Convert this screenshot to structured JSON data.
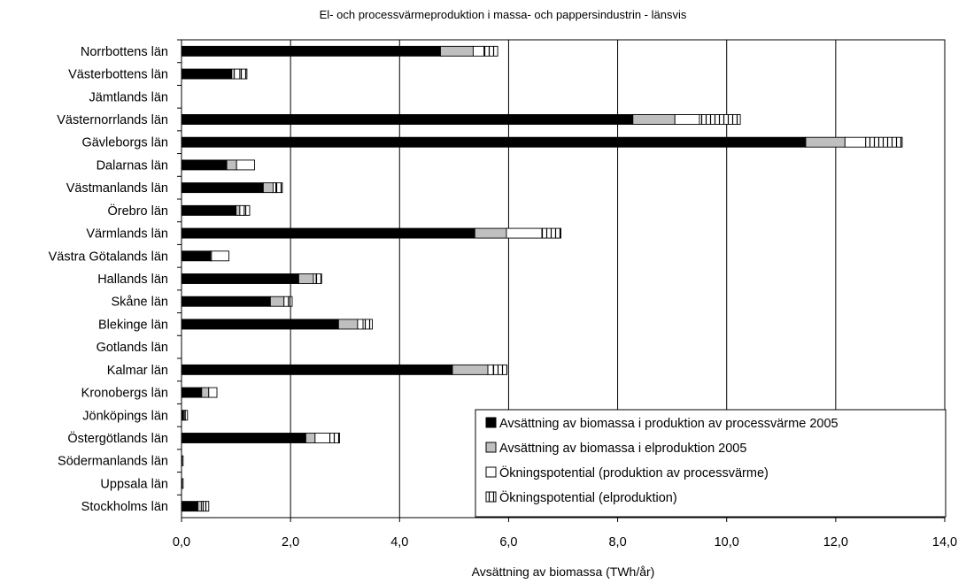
{
  "chart_data": {
    "type": "bar",
    "orientation": "horizontal",
    "stacked": true,
    "title": "El- och processvärmeproduktion i massa- och pappersindustrin - länsvis",
    "xlabel": "Avsättning av biomassa (TWh/år)",
    "ylabel": "",
    "xlim": [
      0,
      14
    ],
    "xticks": [
      0,
      2,
      4,
      6,
      8,
      10,
      12,
      14
    ],
    "xtick_labels": [
      "0,0",
      "2,0",
      "4,0",
      "6,0",
      "8,0",
      "10,0",
      "12,0",
      "14,0"
    ],
    "grid": "vertical",
    "legend_position": "bottom-right",
    "categories": [
      "Norrbottens län",
      "Västerbottens län",
      "Jämtlands län",
      "Västernorrlands län",
      "Gävleborgs län",
      "Dalarnas län",
      "Västmanlands län",
      "Örebro län",
      "Värmlands län",
      "Västra Götalands län",
      "Hallands län",
      "Skåne län",
      "Blekinge län",
      "Gotlands län",
      "Kalmar län",
      "Kronobergs län",
      "Jönköpings län",
      "Östergötlands län",
      "Södermanlands län",
      "Uppsala län",
      "Stockholms län"
    ],
    "series": [
      {
        "name": "Avsättning av biomassa i produktion av processvärme 2005",
        "color": "#000000",
        "pattern": "solid",
        "values": [
          4.75,
          0.92,
          0,
          8.28,
          11.45,
          0.83,
          1.5,
          1.0,
          5.38,
          0.53,
          2.15,
          1.63,
          2.88,
          0,
          4.97,
          0.37,
          0.03,
          2.28,
          0.01,
          0.01,
          0.3
        ]
      },
      {
        "name": "Avsättning av biomassa i elproduktion 2005",
        "color": "#bfbfbf",
        "pattern": "solid",
        "values": [
          0.6,
          0.05,
          0,
          0.77,
          0.72,
          0.18,
          0.18,
          0.07,
          0.58,
          0.02,
          0.27,
          0.25,
          0.35,
          0,
          0.65,
          0.13,
          0.02,
          0.17,
          0.0,
          0.0,
          0.07
        ]
      },
      {
        "name": "Ökningspotential (produktion av processvärme)",
        "color": "#ffffff",
        "pattern": "solid",
        "values": [
          0.2,
          0.1,
          0,
          0.45,
          0.38,
          0.33,
          0.05,
          0.08,
          0.65,
          0.32,
          0.05,
          0.08,
          0.1,
          0,
          0.1,
          0.15,
          0.02,
          0.27,
          0.0,
          0.0,
          0.03
        ]
      },
      {
        "name": "Ökningspotential (elproduktion)",
        "color": "#ffffff",
        "pattern": "vertical-lines",
        "values": [
          0.25,
          0.13,
          0,
          0.75,
          0.67,
          0.0,
          0.12,
          0.1,
          0.35,
          0.0,
          0.1,
          0.07,
          0.17,
          0,
          0.25,
          0.0,
          0.04,
          0.18,
          0.02,
          0.02,
          0.1
        ]
      }
    ]
  }
}
